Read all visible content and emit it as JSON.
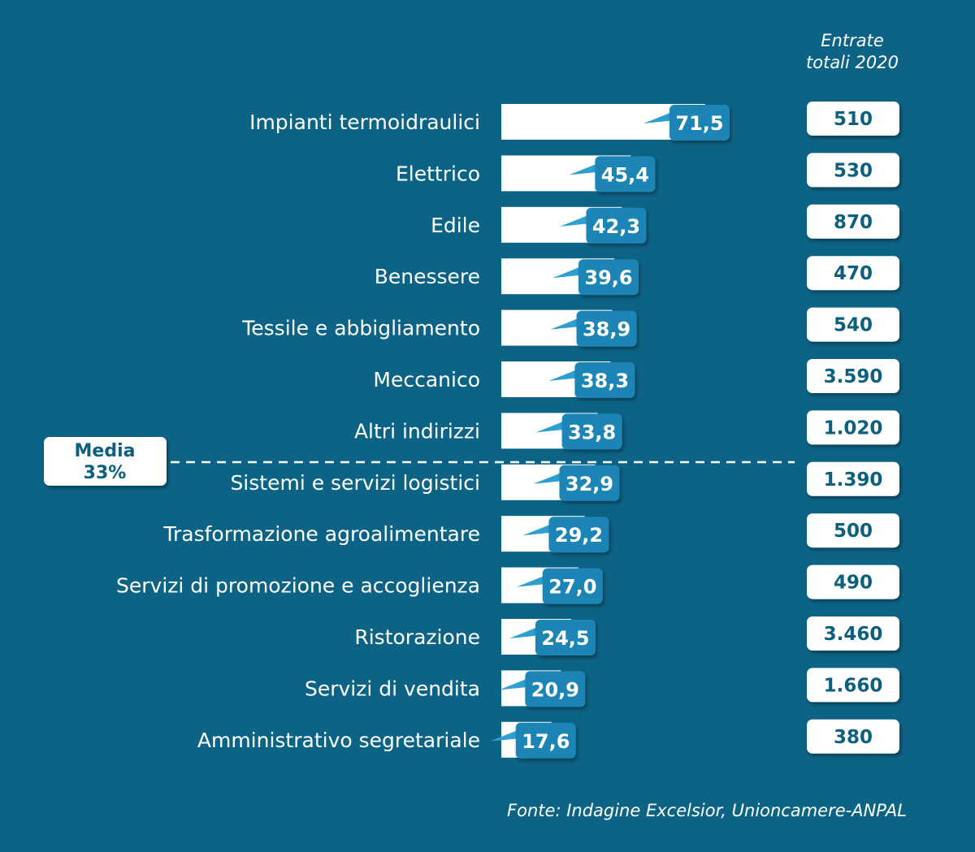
{
  "chart_data": {
    "type": "bar",
    "orientation": "horizontal",
    "categories": [
      "Impianti termoidraulici",
      "Elettrico",
      "Edile",
      "Benessere",
      "Tessile e abbigliamento",
      "Meccanico",
      "Altri indirizzi",
      "Sistemi e servizi logistici",
      "Trasformazione agroalimentare",
      "Servizi di promozione e accoglienza",
      "Ristorazione",
      "Servizi di vendita",
      "Amministrativo segretariale"
    ],
    "values": [
      71.5,
      45.4,
      42.3,
      39.6,
      38.9,
      38.3,
      33.8,
      32.9,
      29.2,
      27.0,
      24.5,
      20.9,
      17.6
    ],
    "value_labels": [
      "71,5",
      "45,4",
      "42,3",
      "39,6",
      "38,9",
      "38,3",
      "33,8",
      "32,9",
      "29,2",
      "27,0",
      "24,5",
      "20,9",
      "17,6"
    ],
    "totals_header_line1": "Entrate",
    "totals_header_line2": "totali 2020",
    "totals": [
      "510",
      "530",
      "870",
      "470",
      "540",
      "3.590",
      "1.020",
      "1.390",
      "500",
      "490",
      "3.460",
      "1.660",
      "380"
    ],
    "average": {
      "label_line1": "Media",
      "label_line2": "33%",
      "value": 33
    },
    "source": "Fonte: Indagine Excelsior, Unioncamere-ANPAL",
    "colors": {
      "background": "#0d6385",
      "bar": "#ffffff",
      "value_box": "#1a85b5",
      "box_text": "#0d5f7f"
    }
  }
}
